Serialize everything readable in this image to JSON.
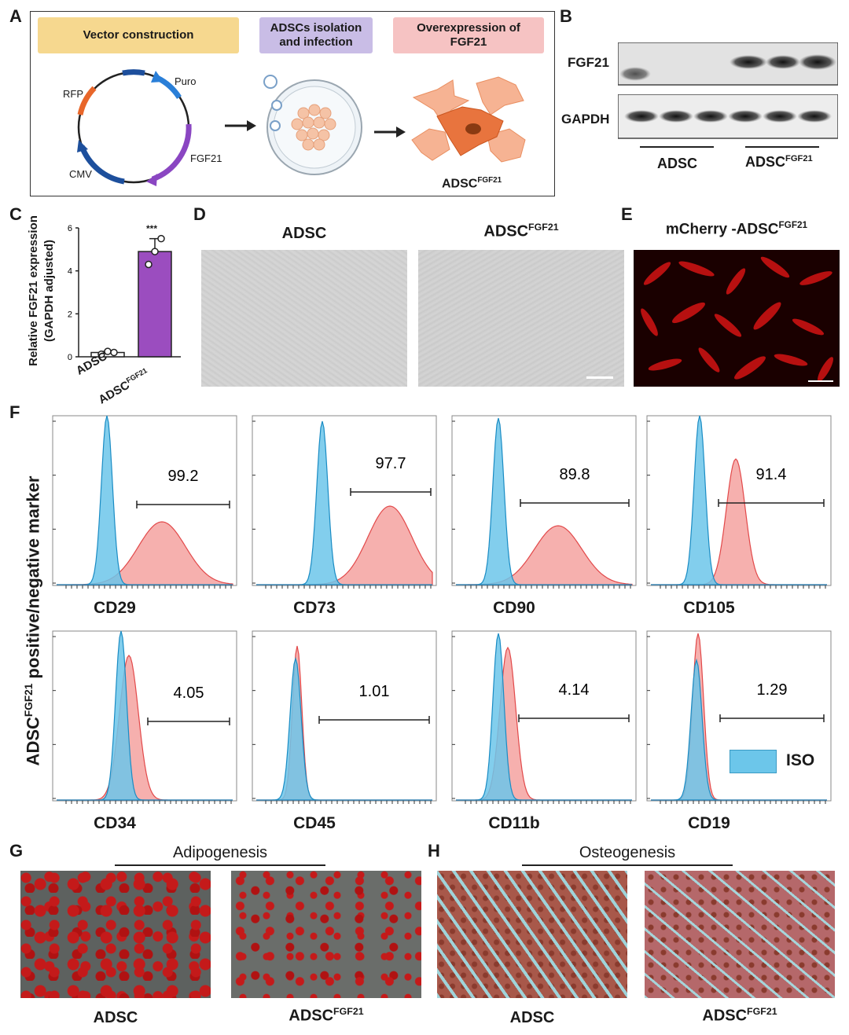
{
  "panels": {
    "A": "A",
    "B": "B",
    "C": "C",
    "D": "D",
    "E": "E",
    "F": "F",
    "G": "G",
    "H": "H"
  },
  "panelA": {
    "step1": "Vector construction",
    "step2a": "ADSCs isolation",
    "step2b": "and infection",
    "step3a": "Overexpression of",
    "step3b": "FGF21",
    "plasmid": {
      "rfp": "RFP",
      "puro": "Puro",
      "fgf21": "FGF21",
      "cmv": "CMV"
    },
    "result_base": "ADSC",
    "result_sup": "FGF21",
    "colors": {
      "step1": "#f6d88f",
      "step2": "#c9bde6",
      "step3": "#f6c3c3",
      "cell": "#f2a37e",
      "cell_dark": "#e8743e",
      "virus": "#7aa0c8"
    }
  },
  "panelB": {
    "row1": "FGF21",
    "row2": "GAPDH",
    "group1": "ADSC",
    "group2_base": "ADSC",
    "group2_sup": "FGF21"
  },
  "panelC": {
    "ylabel_line1": "Relative FGF21 expression",
    "ylabel_line2": "(GAPDH adjusted)",
    "yticks": [
      "0",
      "2",
      "4",
      "6"
    ],
    "sig": "***",
    "x1": "ADSC",
    "x2_base": "ADSC",
    "x2_sup": "FGF21"
  },
  "chart_data": [
    {
      "type": "bar",
      "categories": [
        "ADSC",
        "ADSC FGF21"
      ],
      "values": [
        0.2,
        4.9
      ],
      "points": [
        [
          0.12,
          0.25,
          0.2
        ],
        [
          4.3,
          4.9,
          5.5
        ]
      ],
      "ylabel": "Relative FGF21 expression (GAPDH adjusted)",
      "ylim": [
        0,
        6
      ],
      "bar_colors": [
        "#ffffff",
        "#9b4dbf"
      ]
    }
  ],
  "panelD": {
    "left": "ADSC",
    "right_base": "ADSC",
    "right_sup": "FGF21"
  },
  "panelE": {
    "title_base": "mCherry -ADSC",
    "title_sup": "FGF21"
  },
  "panelF": {
    "ylabel_base": "ADSC",
    "ylabel_sup": "FGF21",
    "ylabel_rest": " positive/negative marker",
    "legend": "ISO",
    "markers": [
      {
        "name": "CD29",
        "value": "99.2"
      },
      {
        "name": "CD73",
        "value": "97.7"
      },
      {
        "name": "CD90",
        "value": "89.8"
      },
      {
        "name": "CD105",
        "value": "91.4"
      },
      {
        "name": "CD34",
        "value": "4.05"
      },
      {
        "name": "CD45",
        "value": "1.01"
      },
      {
        "name": "CD11b",
        "value": "4.14"
      },
      {
        "name": "CD19",
        "value": "1.29"
      }
    ],
    "colors": {
      "iso": "#6cc6ea",
      "marker": "#f4a2a0"
    }
  },
  "panelG": {
    "title": "Adipogenesis",
    "left": "ADSC",
    "right_base": "ADSC",
    "right_sup": "FGF21"
  },
  "panelH": {
    "title": "Osteogenesis",
    "left": "ADSC",
    "right_base": "ADSC",
    "right_sup": "FGF21"
  }
}
